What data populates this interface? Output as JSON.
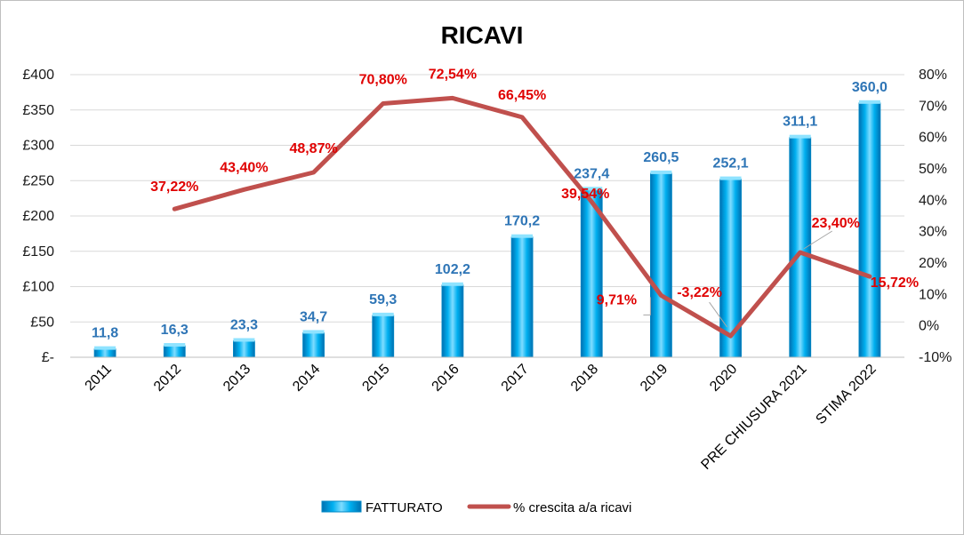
{
  "chart_data": {
    "type": "bar",
    "title": "RICAVI",
    "categories": [
      "2011",
      "2012",
      "2013",
      "2014",
      "2015",
      "2016",
      "2017",
      "2018",
      "2019",
      "2020",
      "PRE CHIUSURA 2021",
      "STIMA 2022"
    ],
    "series": [
      {
        "name": "FATTURATO",
        "type": "bar",
        "axis": "left",
        "values": [
          11.8,
          16.3,
          23.3,
          34.7,
          59.3,
          102.2,
          170.2,
          237.4,
          260.5,
          252.1,
          311.1,
          360.0
        ],
        "labels": [
          "11,8",
          "16,3",
          "23,3",
          "34,7",
          "59,3",
          "102,2",
          "170,2",
          "237,4",
          "260,5",
          "252,1",
          "311,1",
          "360,0"
        ],
        "color": "#00b0f0",
        "label_color": "#2e75b6"
      },
      {
        "name": "% crescita a/a ricavi",
        "type": "line",
        "axis": "right",
        "values": [
          null,
          37.22,
          43.4,
          48.87,
          70.8,
          72.54,
          66.45,
          39.54,
          9.71,
          -3.22,
          23.4,
          15.72
        ],
        "labels": [
          "",
          "37,22%",
          "43,40%",
          "48,87%",
          "70,80%",
          "72,54%",
          "66,45%",
          "39,54%",
          "9,71%",
          "-3,22%",
          "23,40%",
          "15,72%"
        ],
        "color": "#c0504d",
        "label_color": "#e00000"
      }
    ],
    "y_left": {
      "range": [
        0,
        400
      ],
      "ticks": [
        0,
        50,
        100,
        150,
        200,
        250,
        300,
        350,
        400
      ],
      "tick_labels": [
        "£-",
        "£50",
        "£100",
        "£150",
        "£200",
        "£250",
        "£300",
        "£350",
        "£400"
      ]
    },
    "y_right": {
      "range": [
        -10,
        80
      ],
      "ticks": [
        -10,
        0,
        10,
        20,
        30,
        40,
        50,
        60,
        70,
        80
      ],
      "tick_labels": [
        "-10%",
        "0%",
        "10%",
        "20%",
        "30%",
        "40%",
        "50%",
        "60%",
        "70%",
        "80%"
      ]
    },
    "grid": true,
    "legend_position": "bottom"
  }
}
